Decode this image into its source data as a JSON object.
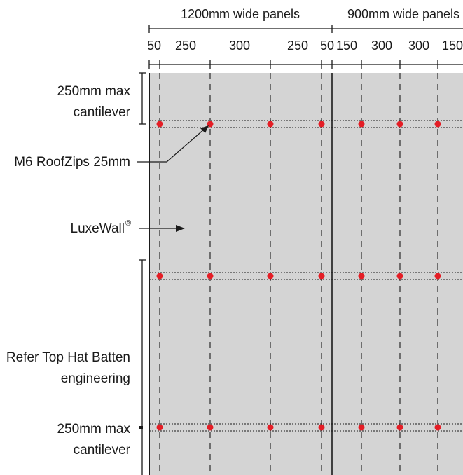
{
  "headers": {
    "left_panel": "1200mm wide panels",
    "right_panel": "900mm wide panels"
  },
  "spacings": [
    "50",
    "250",
    "300",
    "250",
    "50",
    "150",
    "300",
    "300",
    "150"
  ],
  "labels": {
    "top_cantilever_line1": "250mm max",
    "top_cantilever_line2": "cantilever",
    "fastener": "M6 RoofZips 25mm",
    "product": "LuxeWall",
    "product_mark": "®",
    "batten_line1": "Refer Top Hat Batten",
    "batten_line2": "engineering",
    "bottom_cantilever_line1": "250mm max",
    "bottom_cantilever_line2": "cantilever"
  },
  "colors": {
    "wall": "#d4d4d4",
    "fastener": "#e41d25",
    "line": "#1a1a1a"
  }
}
